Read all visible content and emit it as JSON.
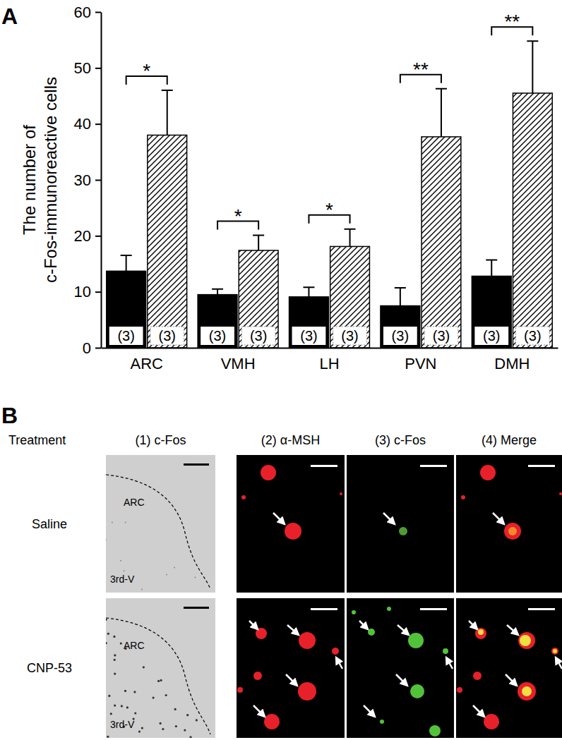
{
  "chart_data": {
    "type": "bar",
    "panel_label": "A",
    "ylabel": [
      "The number of",
      "c-Fos-immunoreactive cells"
    ],
    "categories": [
      "ARC",
      "VMH",
      "LH",
      "PVN",
      "DMH"
    ],
    "series": [
      {
        "color": "#000000",
        "values": [
          13.7,
          9.5,
          9.1,
          7.5,
          12.8
        ],
        "errors": [
          2.8,
          1.0,
          1.7,
          3.2,
          2.9
        ],
        "n_labels": [
          "(3)",
          "(3)",
          "(3)",
          "(3)",
          "(3)"
        ]
      },
      {
        "color": "#000000",
        "values": [
          38.0,
          17.4,
          18.1,
          37.7,
          45.5
        ],
        "errors": [
          8.0,
          2.7,
          3.1,
          8.6,
          9.3
        ],
        "n_labels": [
          "(3)",
          "(3)",
          "(3)",
          "(3)",
          "(3)"
        ]
      }
    ],
    "significance": [
      "*",
      "*",
      "*",
      "**",
      "**"
    ],
    "ylim": [
      0,
      60
    ],
    "yticks": [
      0,
      10,
      20,
      30,
      40,
      50,
      60
    ],
    "grid": false
  },
  "panel_b": {
    "panel_label": "B",
    "header_label": "Treatment",
    "columns": [
      "(1) c-Fos",
      "(2) α-MSH",
      "(3) c-Fos",
      "(4) Merge"
    ],
    "rows": [
      {
        "treatment": "Saline",
        "region_labels": [
          "ARC",
          "3rd-V"
        ]
      },
      {
        "treatment": "CNP-53",
        "region_labels": [
          "ARC",
          "3rd-V"
        ]
      }
    ]
  }
}
